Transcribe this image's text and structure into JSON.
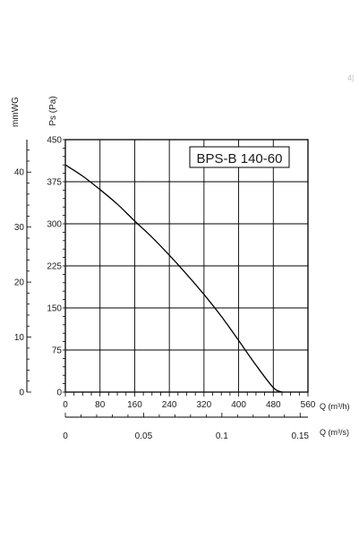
{
  "chart_data": {
    "type": "line",
    "title": "BPS-B 140-60",
    "y_left_label": "mmWG",
    "y_right_label": "Ps (Pa)",
    "x1_label": "Q (m³/h)",
    "x2_label": "Q (m³/s)",
    "pa_ticks": [
      "450",
      "375",
      "300",
      "225",
      "150",
      "75",
      "0"
    ],
    "pa_tick_values": [
      450,
      375,
      300,
      225,
      150,
      75,
      0
    ],
    "mmwg_ticks": [
      "40",
      "30",
      "20",
      "10",
      "0"
    ],
    "mmwg_tick_values": [
      40,
      30,
      20,
      10,
      0
    ],
    "x1_ticks": [
      "0",
      "80",
      "160",
      "240",
      "320",
      "400",
      "480",
      "560"
    ],
    "x1_tick_values": [
      0,
      80,
      160,
      240,
      320,
      400,
      480,
      560
    ],
    "x2_ticks": [
      "0",
      "0.05",
      "0.1",
      "0.15"
    ],
    "x2_tick_values": [
      0,
      0.05,
      0.1,
      0.15
    ],
    "xlim": [
      0,
      560
    ],
    "ylim": [
      0,
      450
    ],
    "mmwg_lim": [
      0,
      45.9
    ],
    "x2_lim": [
      0,
      0.155
    ],
    "grid": true,
    "series": [
      {
        "color": "#000000",
        "x": [
          0,
          40,
          80,
          120,
          160,
          200,
          240,
          280,
          320,
          360,
          400,
          440,
          480,
          500
        ],
        "y": [
          405,
          385,
          361,
          335,
          305,
          276,
          244,
          210,
          174,
          135,
          92,
          48,
          8,
          0
        ]
      }
    ],
    "corner_mark": "4|"
  }
}
